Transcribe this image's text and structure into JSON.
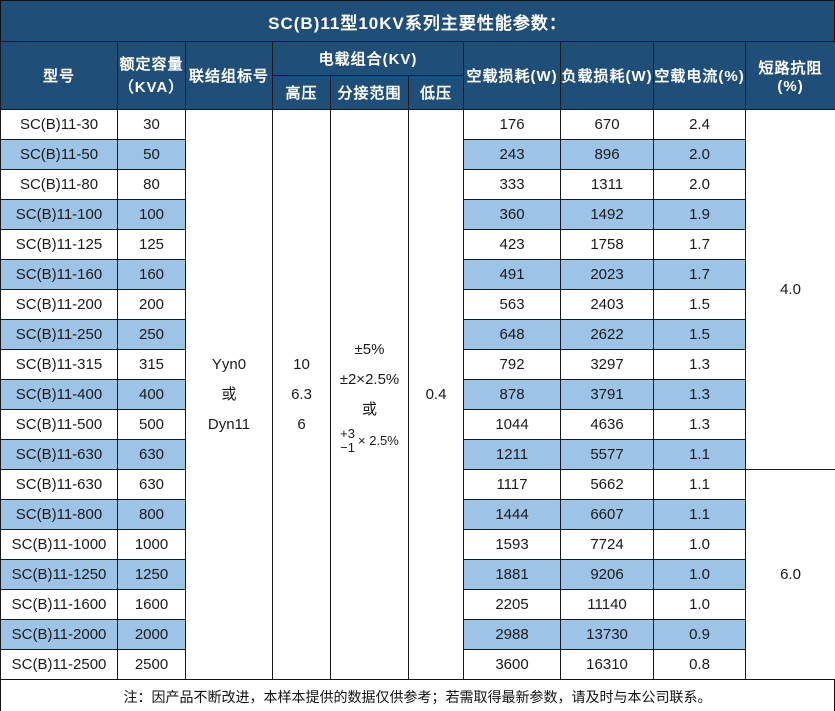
{
  "title": "SC(B)11型10KV系列主要性能参数：",
  "colors": {
    "header_bg": "#1F4E79",
    "stripe_bg": "#9DC3E6",
    "grid": "#1a1a1a",
    "header_text": "#ffffff"
  },
  "header": {
    "model": "型号",
    "capacity_line1": "额定容量",
    "capacity_line2": "（KVA）",
    "connection": "联结组标号",
    "load_combo_group": "电载组合(KV)",
    "high_voltage": "高压",
    "tap_range": "分接范围",
    "low_voltage": "低压",
    "no_load_loss": "空载损耗(W)",
    "load_loss": "负载损耗(W)",
    "no_load_current": "空载电流(%)",
    "impedance": "短路抗阻(%)"
  },
  "merged": {
    "connection_lines": [
      "Yyn0",
      "或",
      "Dyn11"
    ],
    "high_voltage_lines": [
      "10",
      "6.3",
      "6"
    ],
    "tap_range_lines": [
      "±5%",
      "±2×2.5%",
      "或"
    ],
    "tap_range_stack": {
      "top": "+3",
      "bottom": "−1",
      "suffix": "× 2.5%"
    },
    "low_voltage": "0.4"
  },
  "impedance_groups": [
    {
      "value": "4.0",
      "row_span": 12
    },
    {
      "value": "6.0",
      "row_span": 7
    }
  ],
  "rows": [
    {
      "model": "SC(B)11-30",
      "capacity": "30",
      "no_load_loss": "176",
      "load_loss": "670",
      "no_load_current": "2.4"
    },
    {
      "model": "SC(B)11-50",
      "capacity": "50",
      "no_load_loss": "243",
      "load_loss": "896",
      "no_load_current": "2.0"
    },
    {
      "model": "SC(B)11-80",
      "capacity": "80",
      "no_load_loss": "333",
      "load_loss": "1311",
      "no_load_current": "2.0"
    },
    {
      "model": "SC(B)11-100",
      "capacity": "100",
      "no_load_loss": "360",
      "load_loss": "1492",
      "no_load_current": "1.9"
    },
    {
      "model": "SC(B)11-125",
      "capacity": "125",
      "no_load_loss": "423",
      "load_loss": "1758",
      "no_load_current": "1.7"
    },
    {
      "model": "SC(B)11-160",
      "capacity": "160",
      "no_load_loss": "491",
      "load_loss": "2023",
      "no_load_current": "1.7"
    },
    {
      "model": "SC(B)11-200",
      "capacity": "200",
      "no_load_loss": "563",
      "load_loss": "2403",
      "no_load_current": "1.5"
    },
    {
      "model": "SC(B)11-250",
      "capacity": "250",
      "no_load_loss": "648",
      "load_loss": "2622",
      "no_load_current": "1.5"
    },
    {
      "model": "SC(B)11-315",
      "capacity": "315",
      "no_load_loss": "792",
      "load_loss": "3297",
      "no_load_current": "1.3"
    },
    {
      "model": "SC(B)11-400",
      "capacity": "400",
      "no_load_loss": "878",
      "load_loss": "3791",
      "no_load_current": "1.3"
    },
    {
      "model": "SC(B)11-500",
      "capacity": "500",
      "no_load_loss": "1044",
      "load_loss": "4636",
      "no_load_current": "1.3"
    },
    {
      "model": "SC(B)11-630",
      "capacity": "630",
      "no_load_loss": "1211",
      "load_loss": "5577",
      "no_load_current": "1.1"
    },
    {
      "model": "SC(B)11-630",
      "capacity": "630",
      "no_load_loss": "1117",
      "load_loss": "5662",
      "no_load_current": "1.1"
    },
    {
      "model": "SC(B)11-800",
      "capacity": "800",
      "no_load_loss": "1444",
      "load_loss": "6607",
      "no_load_current": "1.1"
    },
    {
      "model": "SC(B)11-1000",
      "capacity": "1000",
      "no_load_loss": "1593",
      "load_loss": "7724",
      "no_load_current": "1.0"
    },
    {
      "model": "SC(B)11-1250",
      "capacity": "1250",
      "no_load_loss": "1881",
      "load_loss": "9206",
      "no_load_current": "1.0"
    },
    {
      "model": "SC(B)11-1600",
      "capacity": "1600",
      "no_load_loss": "2205",
      "load_loss": "11140",
      "no_load_current": "1.0"
    },
    {
      "model": "SC(B)11-2000",
      "capacity": "2000",
      "no_load_loss": "2988",
      "load_loss": "13730",
      "no_load_current": "0.9"
    },
    {
      "model": "SC(B)11-2500",
      "capacity": "2500",
      "no_load_loss": "3600",
      "load_loss": "16310",
      "no_load_current": "0.8"
    }
  ],
  "note": "注：因产品不断改进，本样本提供的数据仅供参考；若需取得最新参数，请及时与本公司联系。"
}
